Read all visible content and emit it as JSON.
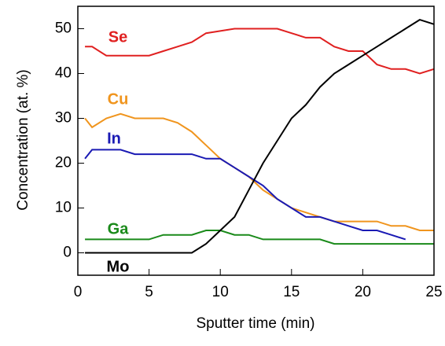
{
  "chart_data": {
    "type": "line",
    "xlabel": "Sputter time (min)",
    "ylabel": "Concentration  (at. %)",
    "x": [
      0.5,
      1,
      2,
      3,
      4,
      5,
      6,
      7,
      8,
      9,
      10,
      11,
      12,
      13,
      14,
      15,
      16,
      17,
      18,
      19,
      20,
      21,
      22,
      23,
      24,
      25
    ],
    "series": [
      {
        "name": "Se",
        "color": "#e02020",
        "values": [
          46,
          46,
          44,
          44,
          44,
          44,
          45,
          46,
          47,
          49,
          49.5,
          50,
          50,
          50,
          50,
          49,
          48,
          48,
          46,
          45,
          45,
          42,
          41,
          41,
          40,
          41
        ]
      },
      {
        "name": "Cu",
        "color": "#f0951e",
        "values": [
          30,
          28,
          30,
          31,
          30,
          30,
          30,
          29,
          27,
          24,
          21,
          19,
          17,
          14,
          12,
          10,
          9,
          8,
          7,
          7,
          7,
          7,
          6,
          6,
          5,
          5
        ]
      },
      {
        "name": "In",
        "color": "#1a1ab4",
        "values": [
          21,
          23,
          23,
          23,
          22,
          22,
          22,
          22,
          22,
          21,
          21,
          19,
          17,
          15,
          12,
          10,
          8,
          8,
          7,
          6,
          5,
          5,
          4,
          3,
          null,
          null
        ]
      },
      {
        "name": "Ga",
        "color": "#1a8a1a",
        "values": [
          3,
          3,
          3,
          3,
          3,
          3,
          4,
          4,
          4,
          5,
          5,
          4,
          4,
          3,
          3,
          3,
          3,
          3,
          2,
          2,
          2,
          2,
          2,
          2,
          2,
          2
        ]
      },
      {
        "name": "Mo",
        "color": "#000000",
        "values": [
          0,
          0,
          0,
          0,
          0,
          0,
          0,
          0,
          0,
          2,
          5,
          8,
          14,
          20,
          25,
          30,
          33,
          37,
          40,
          42,
          44,
          46,
          48,
          50,
          52,
          51
        ]
      }
    ],
    "xlim": [
      0,
      25
    ],
    "xticks": [
      0,
      5,
      10,
      15,
      20,
      25
    ],
    "ylim": [
      -5,
      55
    ],
    "yticks": [
      0,
      10,
      20,
      30,
      40,
      50
    ]
  }
}
